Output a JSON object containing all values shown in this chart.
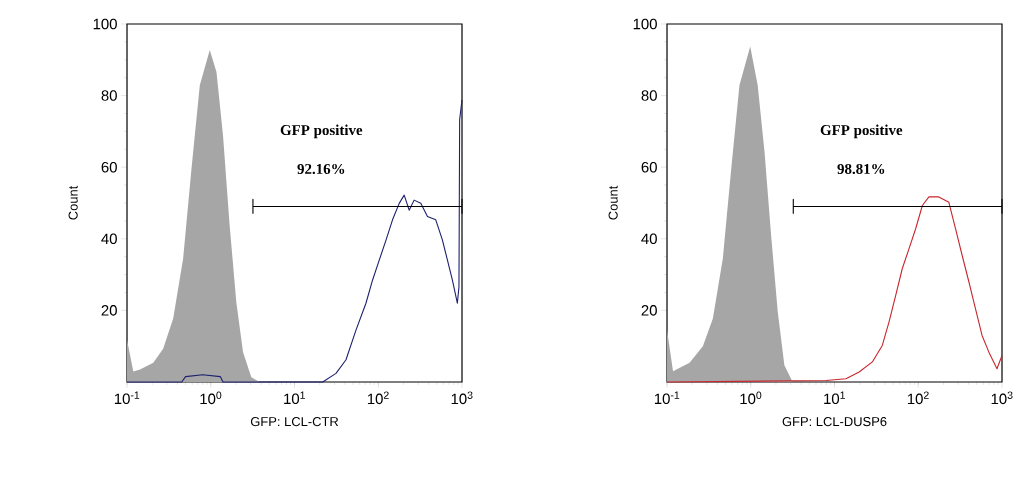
{
  "chart_data": [
    {
      "type": "line",
      "xlabel": "GFP: LCL-CTR",
      "ylabel": "Count",
      "log": "x",
      "xlim": [
        0.1,
        1000
      ],
      "ylim": [
        0,
        100
      ],
      "xticks": [
        {
          "value": 0.1,
          "label": "10$^{-1}$"
        },
        {
          "value": 1,
          "label": "10$^{0}$"
        },
        {
          "value": 10,
          "label": "10$^{1}$"
        },
        {
          "value": 100,
          "label": "10$^{2}$"
        },
        {
          "value": 1000,
          "label": "10$^{3}$"
        }
      ],
      "yticks": [
        20,
        40,
        60,
        80,
        100
      ],
      "annotations": [
        "GFP positive",
        "92.16%"
      ],
      "series": [
        {
          "type": "area",
          "color": "#a6a6a6",
          "x": [
            0.1,
            0.119,
            0.143,
            0.206,
            0.27,
            0.356,
            0.468,
            0.589,
            0.74,
            0.973,
            1.17,
            1.4,
            1.68,
            2.02,
            2.43,
            3.05,
            3.83
          ],
          "values": [
            11.7,
            2.9,
            3.5,
            5.4,
            9.3,
            17.7,
            34.5,
            59.6,
            82.9,
            92.7,
            86.6,
            68.9,
            43.8,
            22.3,
            8.3,
            1.3,
            0
          ]
        },
        {
          "color": "#1c206e",
          "x": [
            0.1,
            0.45,
            0.5,
            0.8,
            1.3,
            1.4,
            21.7,
            31.3,
            41.2,
            54.2,
            71.3,
            85.6,
            103,
            124,
            148,
            178,
            204,
            234,
            268,
            322,
            387,
            486,
            583,
            669,
            767,
            880,
            920,
            937,
            1000
          ],
          "values": [
            0,
            0,
            1.5,
            2,
            1.5,
            0,
            0,
            2.4,
            6.2,
            14.5,
            22,
            28.5,
            34.1,
            39.7,
            45.3,
            49.9,
            52.2,
            48,
            50.8,
            49.9,
            46.2,
            45.3,
            39.7,
            34.1,
            28.5,
            22,
            26.6,
            73.2,
            78.8
          ]
        },
        {
          "color": "#000000",
          "x": [
            3.19,
            3.19,
            3.19,
            1000,
            1000,
            1000
          ],
          "values": [
            47,
            51,
            49,
            49,
            51,
            47
          ]
        }
      ]
    },
    {
      "type": "line",
      "xlabel": "GFP: LCL-DUSP6",
      "ylabel": "Count",
      "log": "x",
      "xlim": [
        0.1,
        1000
      ],
      "ylim": [
        0,
        100
      ],
      "xticks": [
        {
          "value": 0.1,
          "label": "10$^{-1}$"
        },
        {
          "value": 1,
          "label": "10$^{0}$"
        },
        {
          "value": 10,
          "label": "10$^{1}$"
        },
        {
          "value": 100,
          "label": "10$^{2}$"
        },
        {
          "value": 1000,
          "label": "10$^{3}$"
        }
      ],
      "yticks": [
        20,
        40,
        60,
        80,
        100
      ],
      "annotations": [
        "GFP positive",
        "98.81%"
      ],
      "series": [
        {
          "type": "area",
          "color": "#a6a6a6",
          "x": [
            0.1,
            0.118,
            0.186,
            0.268,
            0.353,
            0.464,
            0.585,
            0.733,
            0.985,
            1.21,
            1.46,
            1.75,
            2.1,
            2.52,
            3.16
          ],
          "values": [
            14.5,
            3,
            5.4,
            10,
            17.7,
            34.5,
            59.6,
            82.9,
            93.7,
            82.9,
            64.3,
            41,
            19.6,
            4.7,
            0
          ]
        },
        {
          "color": "#c8262c",
          "x": [
            0.1,
            7.9,
            13.7,
            19.7,
            28.3,
            37.2,
            44.8,
            53.8,
            64.5,
            77.5,
            93.1,
            112,
            134,
            176,
            232,
            279,
            334,
            402,
            482,
            578,
            695,
            871,
            1000
          ],
          "values": [
            0,
            0.4,
            0.9,
            2.8,
            5.6,
            10.2,
            16.8,
            24.2,
            31.7,
            37.2,
            42.8,
            49.3,
            51.7,
            51.7,
            50.2,
            42.8,
            35.4,
            28,
            20.5,
            13,
            8.4,
            3.7,
            7.4
          ]
        },
        {
          "color": "#000000",
          "x": [
            3.22,
            3.22,
            3.22,
            1000,
            1000,
            1000
          ],
          "values": [
            47,
            51,
            49,
            49,
            51,
            47
          ]
        }
      ]
    }
  ]
}
